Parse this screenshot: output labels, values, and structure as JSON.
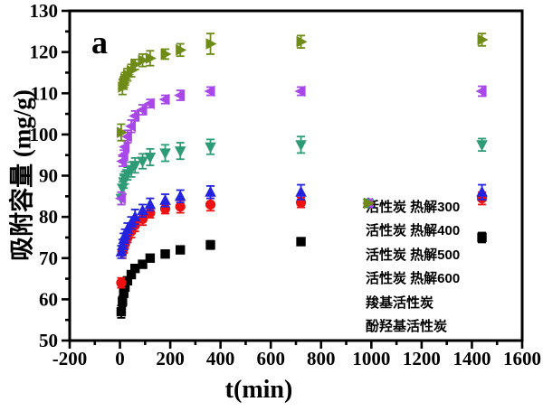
{
  "chart_data": {
    "type": "scatter",
    "panel_label": "a",
    "xlabel": "t(min)",
    "ylabel": "吸附容量 (mg/g)",
    "xlim": [
      -200,
      1600
    ],
    "ylim": [
      50,
      130
    ],
    "x_ticks": [
      -200,
      0,
      200,
      400,
      600,
      800,
      1000,
      1200,
      1400,
      1600
    ],
    "x_minor_step": 100,
    "y_ticks": [
      50,
      60,
      70,
      80,
      90,
      100,
      110,
      120,
      130
    ],
    "y_minor_step": 5,
    "grid": false,
    "error_bars": true,
    "legend_position": "inside lower right",
    "frame_color": "#000000",
    "x": [
      5,
      10,
      15,
      20,
      30,
      45,
      60,
      90,
      120,
      180,
      240,
      360,
      720,
      1440
    ],
    "series": [
      {
        "name": "活性炭 热解300",
        "marker": "square",
        "color": "#000000",
        "values": [
          57,
          59.5,
          61.5,
          63,
          64.5,
          66,
          67.5,
          68.5,
          70,
          71,
          72,
          73.2,
          74,
          75
        ],
        "errors": [
          1.5,
          1.2,
          1.0,
          1.0,
          0.8,
          0.8,
          0.8,
          0.8,
          0.8,
          0.8,
          0.8,
          1.0,
          0.7,
          1.2
        ]
      },
      {
        "name": "活性炭 热解400",
        "marker": "circle",
        "color": "#ee1111",
        "values": [
          64,
          71.5,
          72.5,
          73.5,
          75,
          76.5,
          78,
          79.5,
          81,
          82,
          82.5,
          83,
          83.5,
          84.5
        ],
        "errors": [
          1.2,
          1.5,
          1.2,
          1.2,
          1.2,
          1.5,
          1.5,
          1.5,
          1.2,
          1.2,
          1.5,
          1.5,
          1.2,
          1.5
        ]
      },
      {
        "name": "活性炭 热解500",
        "marker": "triangle-up",
        "color": "#2222e0",
        "values": [
          71.5,
          73,
          74.5,
          75.5,
          77,
          78.5,
          80,
          81.5,
          83,
          84,
          85,
          86,
          86,
          86
        ],
        "errors": [
          1.5,
          1.5,
          1.5,
          1.5,
          1.5,
          1.5,
          1.8,
          1.5,
          1.5,
          1.5,
          1.5,
          1.5,
          1.8,
          1.8
        ]
      },
      {
        "name": "活性炭 热解600",
        "marker": "triangle-down",
        "color": "#2e9b77",
        "values": [
          84.5,
          87,
          88.5,
          89.5,
          90.5,
          91.5,
          92.5,
          93.5,
          94.5,
          95.5,
          96,
          97,
          97.5,
          97.5
        ],
        "errors": [
          1.5,
          1.5,
          1.5,
          1.5,
          1.5,
          1.8,
          1.8,
          1.8,
          2.0,
          2.0,
          2.0,
          1.8,
          2.0,
          1.5
        ]
      },
      {
        "name": "羧基活性炭",
        "marker": "triangle-left",
        "color": "#a848e8",
        "values": [
          84.5,
          93.5,
          95,
          97,
          99.5,
          102,
          104.5,
          106,
          107.5,
          108.5,
          109.5,
          110.5,
          110.5,
          110.5
        ],
        "errors": [
          1.5,
          1.2,
          1.2,
          1.5,
          1.5,
          1.5,
          1.2,
          1.2,
          1.0,
          1.0,
          1.2,
          1.0,
          1.0,
          1.2
        ]
      },
      {
        "name": "酚羟基活性炭",
        "marker": "triangle-right",
        "color": "#6e8b17",
        "values": [
          100.5,
          111.5,
          112.5,
          113.5,
          114.5,
          115.5,
          117,
          118,
          118.5,
          119.5,
          120.5,
          122,
          122.5,
          123
        ],
        "errors": [
          2.0,
          1.8,
          1.5,
          1.5,
          1.5,
          1.5,
          1.2,
          1.5,
          1.8,
          1.2,
          1.5,
          2.5,
          1.5,
          1.5
        ]
      }
    ]
  }
}
